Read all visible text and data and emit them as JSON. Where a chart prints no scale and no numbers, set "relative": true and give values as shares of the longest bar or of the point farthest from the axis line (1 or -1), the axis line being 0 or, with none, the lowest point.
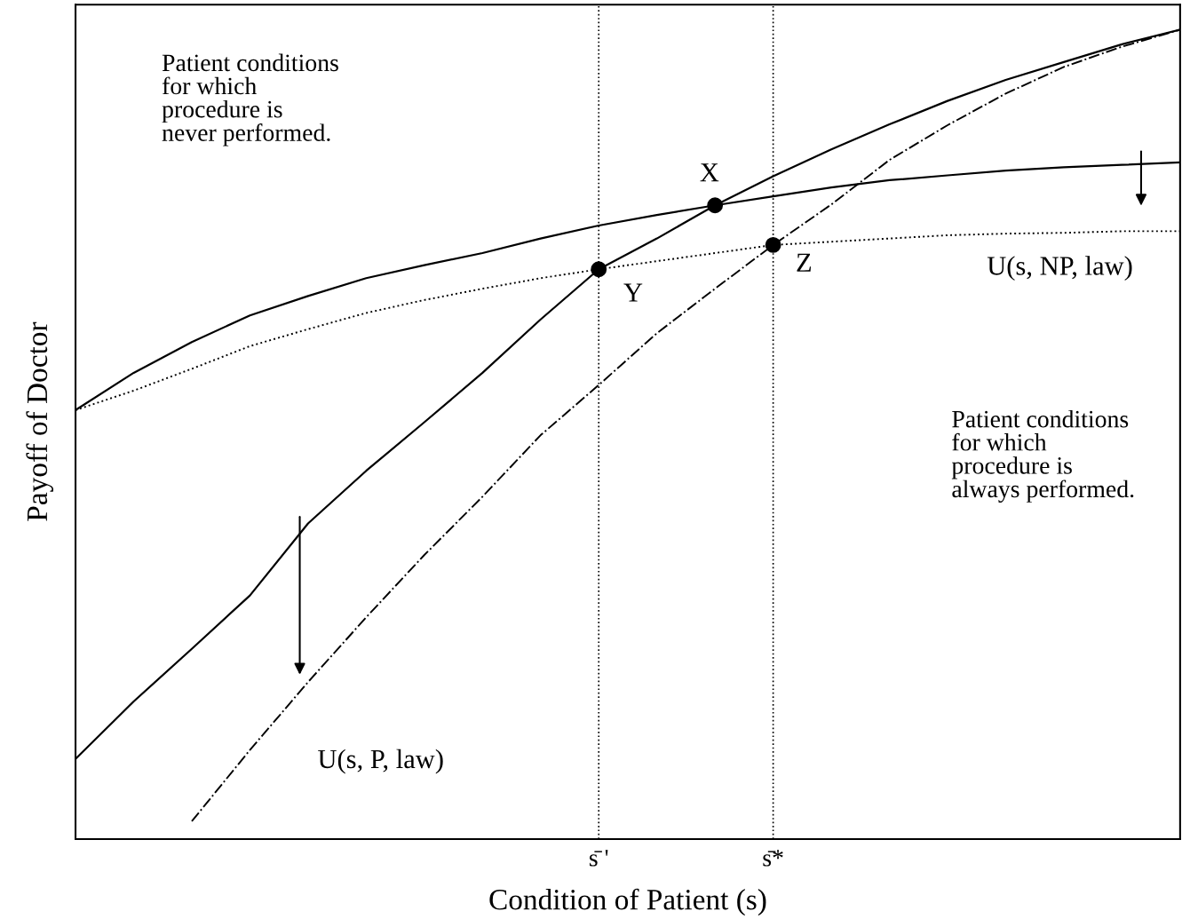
{
  "chart_data": {
    "type": "line",
    "relative": true,
    "xlabel": "Condition of Patient (s)",
    "ylabel": "Payoff of Doctor",
    "grid": "x",
    "categories": [
      null,
      null,
      null,
      null,
      null,
      null,
      null,
      null,
      null,
      "s̄ '",
      null,
      null,
      "s̄*",
      null,
      null,
      null,
      null,
      null,
      null,
      null
    ],
    "series": [
      {
        "color": "#000000",
        "line_style": "solid",
        "values": [
          0.099,
          0.17,
          0.235,
          0.301,
          0.39,
          0.455,
          0.515,
          0.576,
          0.642,
          0.704,
          0.742,
          0.783,
          0.819,
          0.852,
          0.883,
          0.912,
          0.938,
          0.96,
          0.982,
          1.0
        ]
      },
      {
        "color": "#000000",
        "line_style": "solid",
        "values": [
          0.53,
          0.576,
          0.614,
          0.647,
          0.671,
          0.693,
          0.709,
          0.724,
          0.742,
          0.758,
          0.771,
          0.783,
          0.794,
          0.805,
          0.814,
          0.82,
          0.826,
          0.83,
          0.833,
          0.836
        ]
      },
      {
        "color": "#000000",
        "line_style": "dotted",
        "values": [
          0.53,
          0.554,
          0.581,
          0.609,
          0.63,
          0.65,
          0.666,
          0.68,
          0.693,
          0.704,
          0.714,
          0.724,
          0.734,
          0.738,
          0.742,
          0.746,
          0.748,
          0.749,
          0.751,
          0.751
        ]
      },
      {
        "color": "#000000",
        "line_style": "dashdot",
        "values": [
          null,
          null,
          0.022,
          0.11,
          0.194,
          0.274,
          0.351,
          0.423,
          0.499,
          0.561,
          0.625,
          0.68,
          0.734,
          0.784,
          0.839,
          0.882,
          0.921,
          0.954,
          0.979,
          1.0
        ]
      },
      {
        "type": "scatter",
        "color": "#000000",
        "marker": "circle",
        "values": [
          null,
          null,
          null,
          null,
          null,
          null,
          null,
          null,
          null,
          0.704,
          null,
          0.783,
          0.734,
          null,
          null,
          null,
          null,
          null,
          null,
          null
        ]
      }
    ],
    "annotations": [
      "Patient conditions\nfor which\nprocedure is\nnever performed.",
      "Patient conditions\nfor which\nprocedure is\nalways performed.",
      "X",
      "Y",
      "Z",
      "U(s, NP, law)",
      "U(s, P, law)"
    ]
  }
}
